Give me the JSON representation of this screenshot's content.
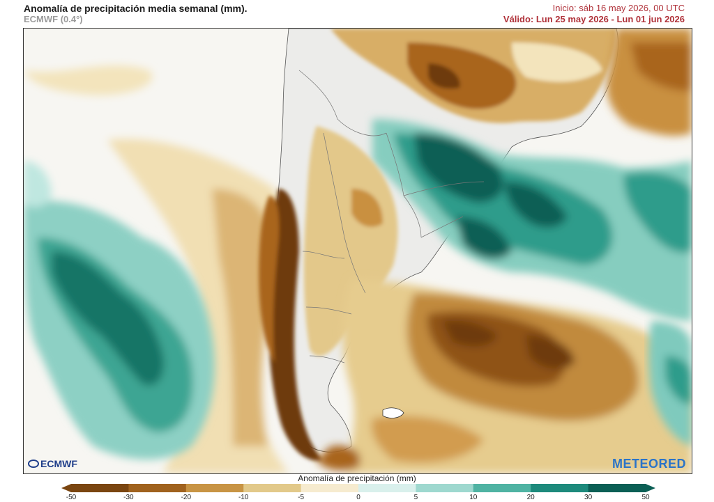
{
  "header": {
    "title": "Anomalía de precipitación media semanal (mm).",
    "model": "ECMWF (0.4°)",
    "init": "Inicio:  sáb 16 may 2026, 00 UTC",
    "valid": "Válido: Lun 25 may 2026 - Lun 01 jun 2026"
  },
  "logos": {
    "left": "ECMWF",
    "right": "METEORED"
  },
  "legend": {
    "label": "Anomalía de precipitación (mm)",
    "ticks": [
      "-50",
      "-30",
      "-20",
      "-10",
      "-5",
      "0",
      "5",
      "10",
      "20",
      "30",
      "50"
    ],
    "colors": [
      "#7a4510",
      "#a0621e",
      "#c89444",
      "#e2c98a",
      "#f6ebcf",
      "#ffffff",
      "#d9f0ec",
      "#9ed8cf",
      "#4fb3a3",
      "#1d8a7c",
      "#0b5f55"
    ]
  },
  "map": {
    "ocean_color": "#f6f6f4",
    "land_color": "#eaeaea",
    "dry_colors": [
      "#f3e4bc",
      "#d9b06b",
      "#a9651f",
      "#6e3a0c"
    ],
    "wet_colors": [
      "#cdeee8",
      "#7fcabd",
      "#2f9c8b",
      "#0b5f55"
    ],
    "icons": [
      "ecmwf-logo-icon",
      "meteored-logo-icon"
    ]
  }
}
